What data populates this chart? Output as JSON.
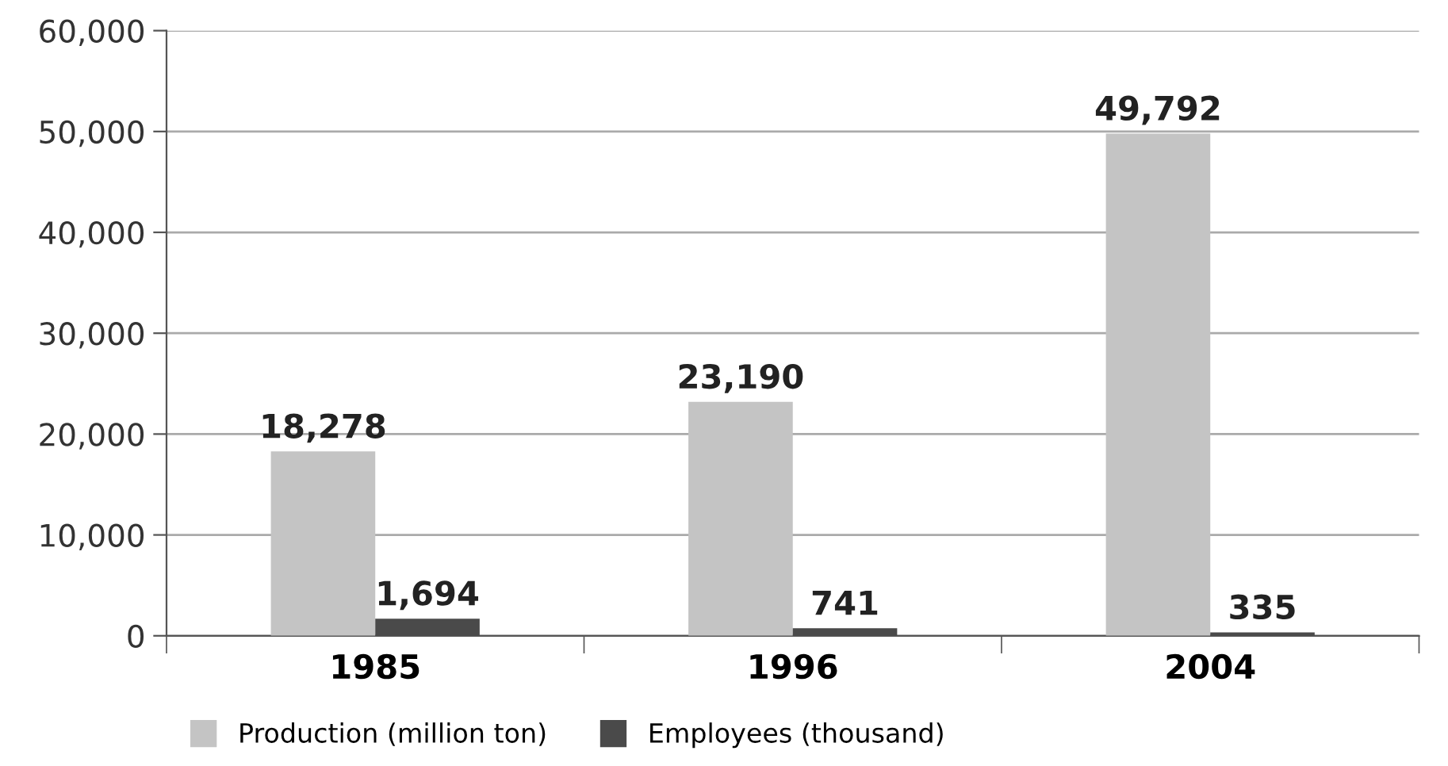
{
  "chart_data": {
    "type": "bar",
    "categories": [
      "1985",
      "1996",
      "2004"
    ],
    "series": [
      {
        "name": "Production (million ton)",
        "color": "#c4c4c4",
        "values": [
          18278,
          23190,
          49792
        ],
        "value_labels": [
          "18,278",
          "23,190",
          "49,792"
        ]
      },
      {
        "name": "Employees (thousand)",
        "color": "#4a4a4a",
        "values": [
          1694,
          741,
          335
        ],
        "value_labels": [
          "1,694",
          "741",
          "335"
        ]
      }
    ],
    "ylim": [
      0,
      60000
    ],
    "yticks": [
      0,
      {
        "value": 10000,
        "label": "10,000"
      },
      {
        "value": 20000,
        "label": "20,000"
      },
      {
        "value": 30000,
        "label": "30,000"
      },
      {
        "value": 40000,
        "label": "40,000"
      },
      {
        "value": 50000,
        "label": "50,000"
      },
      {
        "value": 60000,
        "label": "60,000"
      }
    ],
    "grid": "y",
    "legend": "bottom"
  }
}
